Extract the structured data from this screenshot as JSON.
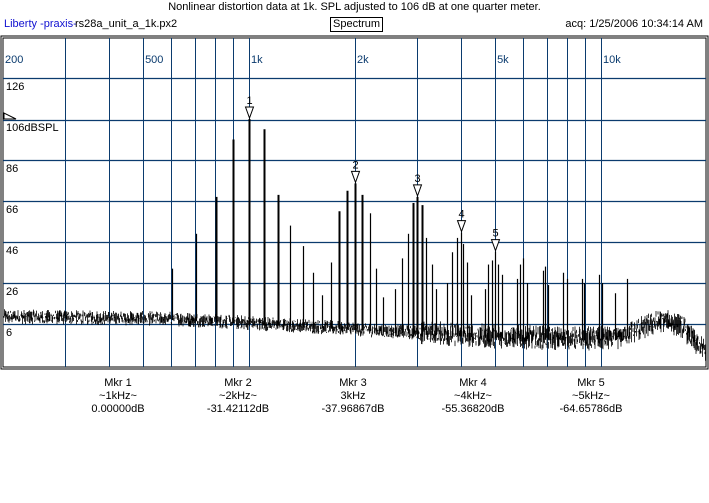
{
  "header": {
    "title": "Nonlinear distortion data at 1k. SPL adjusted to 106 dB at one quarter meter.",
    "brand": "Liberty -praxis-",
    "filename": "rs28a_unit_a_1k.px2",
    "mode": "Spectrum",
    "acquired": "acq: 1/25/2006 10:34:14 AM"
  },
  "colors": {
    "grid": "#0b3b6e",
    "trace": "#000000"
  },
  "chart_data": {
    "type": "line",
    "title": "Spectrum",
    "xscale": "log",
    "xlim": [
      200,
      20000
    ],
    "ylim": [
      -14.5,
      126
    ],
    "ylabel_unit": "dBSPL",
    "reference_level": 106,
    "x_grid": [
      300,
      400,
      500,
      600,
      700,
      800,
      900,
      1000,
      2000,
      3000,
      4000,
      5000,
      6000,
      7000,
      8000,
      9000,
      10000
    ],
    "x_tick_labels": [
      {
        "f": 200,
        "label": "200"
      },
      {
        "f": 500,
        "label": "500"
      },
      {
        "f": 1000,
        "label": "1k"
      },
      {
        "f": 2000,
        "label": "2k"
      },
      {
        "f": 5000,
        "label": "5k"
      },
      {
        "f": 10000,
        "label": "10k"
      }
    ],
    "y_ticks": [
      {
        "v": 126,
        "label": "126"
      },
      {
        "v": 106,
        "label": "106dBSPL"
      },
      {
        "v": 86,
        "label": "86"
      },
      {
        "v": 66,
        "label": "66"
      },
      {
        "v": 46,
        "label": "46"
      },
      {
        "v": 26,
        "label": "26"
      },
      {
        "v": 6,
        "label": "6"
      }
    ],
    "noise_floor": [
      [
        200,
        9
      ],
      [
        600,
        8
      ],
      [
        1000,
        6
      ],
      [
        2000,
        3
      ],
      [
        3000,
        1
      ],
      [
        5000,
        -1
      ],
      [
        8000,
        -2
      ],
      [
        11000,
        -2
      ],
      [
        13000,
        3
      ],
      [
        15000,
        7
      ],
      [
        17000,
        4
      ],
      [
        18500,
        -4
      ],
      [
        20000,
        -9
      ]
    ],
    "peaks": [
      [
        605,
        33
      ],
      [
        708,
        50
      ],
      [
        806,
        68
      ],
      [
        901,
        96
      ],
      [
        1000,
        106
      ],
      [
        1103,
        101
      ],
      [
        1208,
        69
      ],
      [
        1307,
        54
      ],
      [
        1421,
        44
      ],
      [
        1518,
        31
      ],
      [
        1610,
        20
      ],
      [
        1707,
        36
      ],
      [
        1799,
        61
      ],
      [
        1895,
        71
      ],
      [
        2000,
        74.6
      ],
      [
        2090,
        69
      ],
      [
        2200,
        60
      ],
      [
        2300,
        33
      ],
      [
        2395,
        19
      ],
      [
        2593,
        23
      ],
      [
        2713,
        38
      ],
      [
        2822,
        50
      ],
      [
        2915,
        65
      ],
      [
        3000,
        68
      ],
      [
        3110,
        64
      ],
      [
        3192,
        48
      ],
      [
        3300,
        35
      ],
      [
        3387,
        23
      ],
      [
        3662,
        26
      ],
      [
        3780,
        41
      ],
      [
        3885,
        48
      ],
      [
        4000,
        50.6
      ],
      [
        4065,
        45
      ],
      [
        4170,
        36
      ],
      [
        4280,
        20
      ],
      [
        4687,
        23
      ],
      [
        4785,
        35
      ],
      [
        4910,
        37
      ],
      [
        5000,
        41.3
      ],
      [
        5100,
        35
      ],
      [
        5240,
        30
      ],
      [
        5780,
        28
      ],
      [
        5890,
        35
      ],
      [
        6000,
        38
      ],
      [
        6170,
        26
      ],
      [
        6840,
        32
      ],
      [
        6940,
        34
      ],
      [
        7070,
        25
      ],
      [
        7800,
        31
      ],
      [
        8000,
        28
      ],
      [
        8810,
        28
      ],
      [
        8940,
        26
      ],
      [
        9890,
        30
      ],
      [
        10060,
        26
      ],
      [
        10950,
        21
      ],
      [
        11830,
        28
      ]
    ],
    "markers": [
      {
        "id": "1",
        "name": "Mkr 1",
        "freq_label": "~1kHz~",
        "value": "0.00000dB",
        "f": 1000,
        "db": 106
      },
      {
        "id": "2",
        "name": "Mkr 2",
        "freq_label": "~2kHz~",
        "value": "-31.42112dB",
        "f": 2000,
        "db": 74.6
      },
      {
        "id": "3",
        "name": "Mkr 3",
        "freq_label": "3kHz",
        "value": "-37.96867dB",
        "f": 3000,
        "db": 68
      },
      {
        "id": "4",
        "name": "Mkr 4",
        "freq_label": "~4kHz~",
        "value": "-55.36820dB",
        "f": 4000,
        "db": 50.6
      },
      {
        "id": "5",
        "name": "Mkr 5",
        "freq_label": "~5kHz~",
        "value": "-64.65786dB",
        "f": 5000,
        "db": 41.3
      }
    ]
  }
}
